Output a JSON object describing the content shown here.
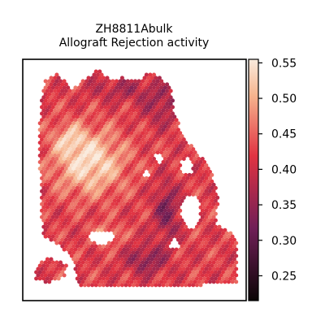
{
  "chart_data": {
    "type": "heatmap",
    "title": "ZH8811Abulk",
    "subtitle": "Allograft Rejection activity",
    "colormap": "rocket",
    "colorbar": {
      "range": [
        0.215,
        0.555
      ],
      "ticks": [
        0.25,
        0.3,
        0.35,
        0.4,
        0.45,
        0.5,
        0.55
      ],
      "tick_labels": [
        "0.25",
        "0.30",
        "0.35",
        "0.40",
        "0.45",
        "0.50",
        "0.55"
      ],
      "placement": "right"
    },
    "grid": false,
    "colors": {
      "low": "#0b0405",
      "mid_low": "#701f57",
      "mid": "#e13342",
      "mid_high": "#f6b48e",
      "high": "#faebdd"
    }
  }
}
